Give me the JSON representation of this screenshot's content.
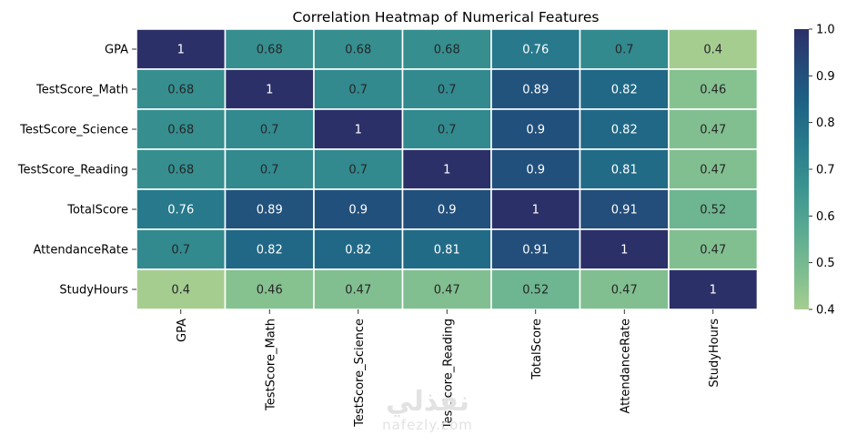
{
  "chart_data": {
    "type": "heatmap",
    "title": "Correlation Heatmap of Numerical Features",
    "rows": [
      "GPA",
      "TestScore_Math",
      "TestScore_Science",
      "TestScore_Reading",
      "TotalScore",
      "AttendanceRate",
      "StudyHours"
    ],
    "columns": [
      "GPA",
      "TestScore_Math",
      "TestScore_Science",
      "TestScore_Reading",
      "TotalScore",
      "AttendanceRate",
      "StudyHours"
    ],
    "values": [
      [
        1,
        0.68,
        0.68,
        0.68,
        0.76,
        0.7,
        0.4
      ],
      [
        0.68,
        1,
        0.7,
        0.7,
        0.89,
        0.82,
        0.46
      ],
      [
        0.68,
        0.7,
        1,
        0.7,
        0.9,
        0.82,
        0.47
      ],
      [
        0.68,
        0.7,
        0.7,
        1,
        0.9,
        0.81,
        0.47
      ],
      [
        0.76,
        0.89,
        0.9,
        0.9,
        1,
        0.91,
        0.52
      ],
      [
        0.7,
        0.82,
        0.82,
        0.81,
        0.91,
        1,
        0.47
      ],
      [
        0.4,
        0.46,
        0.47,
        0.47,
        0.52,
        0.47,
        1
      ]
    ],
    "colorbar": {
      "range": [
        0.4,
        1.0
      ],
      "ticks": [
        "0.4",
        "0.5",
        "0.6",
        "0.7",
        "0.8",
        "0.9",
        "1.0"
      ],
      "colormap": "crest"
    },
    "annotated": true
  },
  "watermark": {
    "arabic": "نفذلي",
    "latin": "nafezly.com"
  }
}
